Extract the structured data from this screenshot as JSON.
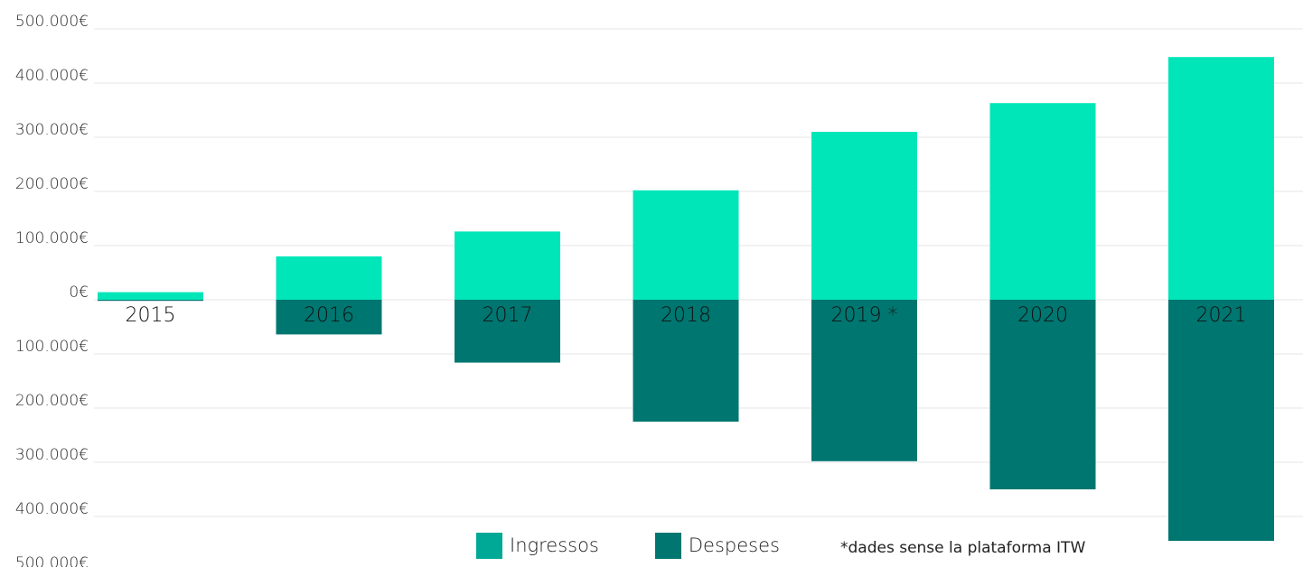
{
  "chart_data": {
    "type": "bar",
    "stacked_diverging": true,
    "categories": [
      "2015",
      "2016",
      "2017",
      "2018",
      "2019 *",
      "2020",
      "2021"
    ],
    "series": [
      {
        "name": "Ingressos",
        "color": "#00E6B8",
        "values": [
          14000,
          80000,
          126000,
          202000,
          310000,
          363000,
          448000
        ]
      },
      {
        "name": "Despeses",
        "color": "#007670",
        "values": [
          -2000,
          -64000,
          -116000,
          -225000,
          -298000,
          -350000,
          -445000
        ]
      }
    ],
    "ylim": [
      -500000,
      500000
    ],
    "yticks": [
      500000,
      400000,
      300000,
      200000,
      100000,
      0,
      -100000,
      -200000,
      -300000,
      -400000,
      -500000
    ],
    "ytick_labels": [
      "500.000€",
      "400.000€",
      "300.000€",
      "200.000€",
      "100.000€",
      "0€",
      "100.000€",
      "200.000€",
      "300.000€",
      "400.000€",
      "500.000€"
    ],
    "grid": true,
    "legend_position": "bottom",
    "legend": [
      {
        "label": "Ingressos",
        "color": "#00A896"
      },
      {
        "label": "Despeses",
        "color": "#007670"
      }
    ],
    "annotation": "*dades sense la plataforma ITW"
  }
}
